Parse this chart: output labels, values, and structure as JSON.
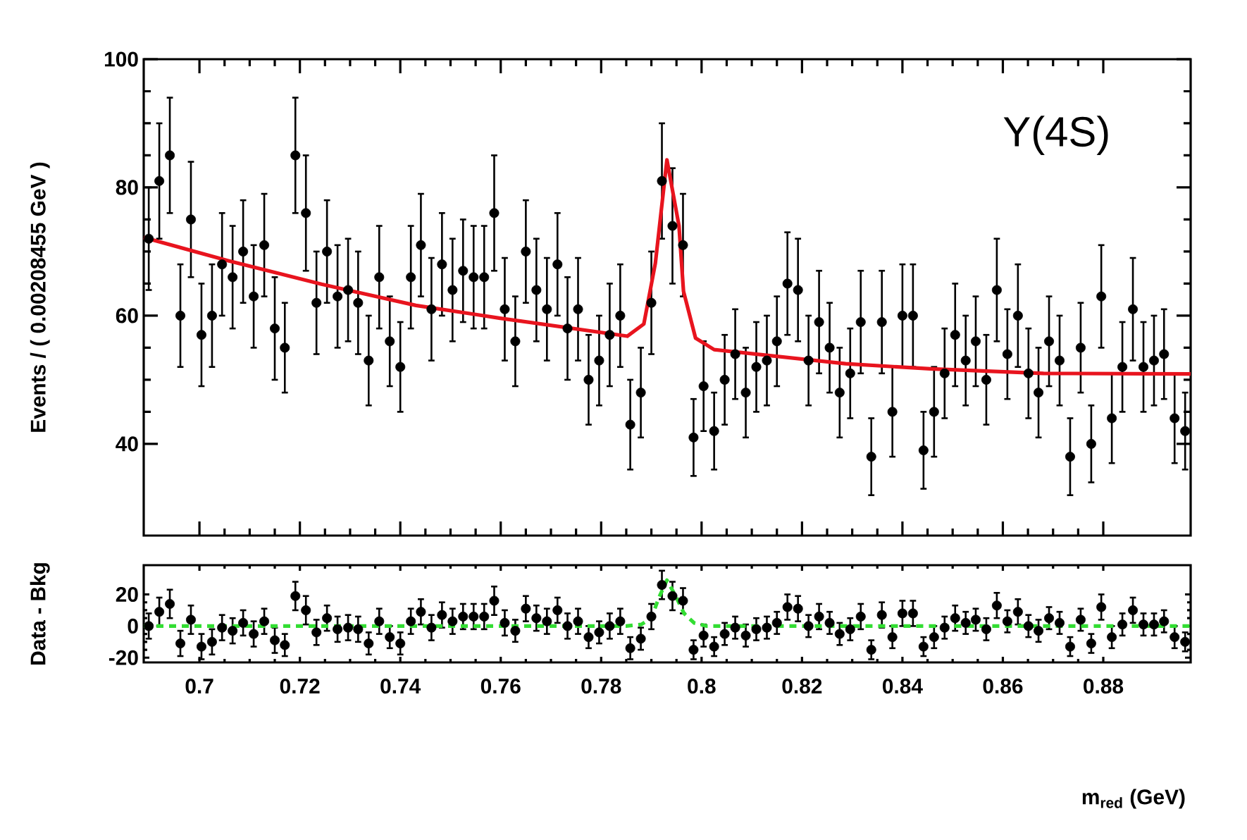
{
  "chart_data": [
    {
      "type": "scatter",
      "ylabel": "Events / ( 0.00208455 GeV )",
      "xlim": [
        0.6889,
        0.8974
      ],
      "ylim": [
        25.7,
        100
      ],
      "xticks": [
        0.7,
        0.72,
        0.74,
        0.76,
        0.78,
        0.8,
        0.82,
        0.84,
        0.86,
        0.88
      ],
      "yticks": [
        40,
        60,
        80,
        100
      ],
      "tick_labels": "y",
      "annotations": [
        "Υ(4S)"
      ],
      "x": [
        0.6899,
        0.692,
        0.6941,
        0.6962,
        0.6983,
        0.7004,
        0.7025,
        0.7045,
        0.7066,
        0.7087,
        0.7108,
        0.7129,
        0.715,
        0.717,
        0.7191,
        0.7212,
        0.7233,
        0.7254,
        0.7275,
        0.7296,
        0.7316,
        0.7337,
        0.7358,
        0.7379,
        0.74,
        0.7421,
        0.7441,
        0.7462,
        0.7483,
        0.7504,
        0.7525,
        0.7546,
        0.7567,
        0.7587,
        0.7608,
        0.7629,
        0.765,
        0.7671,
        0.7692,
        0.7713,
        0.7733,
        0.7754,
        0.7775,
        0.7796,
        0.7817,
        0.7838,
        0.7858,
        0.7879,
        0.79,
        0.7921,
        0.7942,
        0.7963,
        0.7984,
        0.8004,
        0.8025,
        0.8046,
        0.8067,
        0.8088,
        0.8109,
        0.813,
        0.815,
        0.8171,
        0.8192,
        0.8213,
        0.8234,
        0.8255,
        0.8275,
        0.8296,
        0.8317,
        0.8338,
        0.8359,
        0.838,
        0.84,
        0.8421,
        0.8442,
        0.8463,
        0.8484,
        0.8505,
        0.8526,
        0.8546,
        0.8567,
        0.8588,
        0.8609,
        0.863,
        0.8651,
        0.8671,
        0.8692,
        0.8713,
        0.8734,
        0.8755,
        0.8776,
        0.8796,
        0.8817,
        0.8838,
        0.8859,
        0.888,
        0.8901,
        0.8921,
        0.8942,
        0.8963
      ],
      "series": [
        {
          "color": "#000000",
          "marker": "circle",
          "values": [
            72,
            81,
            85,
            60,
            75,
            57,
            60,
            68,
            66,
            70,
            63,
            71,
            58,
            55,
            85,
            76,
            62,
            70,
            63,
            64,
            62,
            53,
            66,
            56,
            52,
            66,
            71,
            61,
            68,
            64,
            67,
            66,
            66,
            76,
            61,
            56,
            70,
            64,
            61,
            68,
            58,
            61,
            50,
            53,
            57,
            60,
            43,
            48,
            62,
            81,
            74,
            71,
            41,
            49,
            42,
            50,
            54,
            48,
            52,
            53,
            56,
            65,
            64,
            53,
            59,
            55,
            48,
            51,
            59,
            38,
            59,
            45,
            60,
            60,
            39,
            45,
            51,
            57,
            53,
            56,
            50,
            64,
            54,
            60,
            51,
            48,
            56,
            53,
            38,
            55,
            40,
            63,
            44,
            52,
            61,
            52,
            53,
            54,
            44,
            42
          ],
          "errors": [
            8,
            9,
            9,
            8,
            9,
            8,
            8,
            8,
            8,
            8,
            8,
            8,
            8,
            7,
            9,
            9,
            8,
            8,
            8,
            8,
            8,
            7,
            8,
            7,
            7,
            8,
            8,
            8,
            8,
            8,
            8,
            8,
            8,
            9,
            8,
            7,
            8,
            8,
            8,
            8,
            8,
            8,
            7,
            7,
            8,
            8,
            7,
            7,
            8,
            9,
            9,
            8,
            6,
            7,
            6,
            7,
            7,
            7,
            7,
            7,
            7,
            8,
            8,
            7,
            8,
            7,
            7,
            7,
            8,
            6,
            8,
            7,
            8,
            8,
            6,
            7,
            7,
            8,
            7,
            7,
            7,
            8,
            7,
            8,
            7,
            7,
            7,
            7,
            6,
            7,
            6,
            8,
            7,
            7,
            8,
            7,
            7,
            7,
            7,
            6
          ]
        },
        {
          "type": "line",
          "color": "#e8141e",
          "marker": "none",
          "line_style": "solid",
          "x": [
            0.6889,
            0.7056,
            0.7243,
            0.7431,
            0.7557,
            0.7599,
            0.7852,
            0.7885,
            0.7908,
            0.7931,
            0.7955,
            0.7964,
            0.7988,
            0.8025,
            0.8287,
            0.8456,
            0.8681,
            0.8974
          ],
          "values": [
            72.2,
            68.6,
            64.9,
            61.6,
            60.1,
            59.6,
            56.8,
            58.7,
            68.2,
            84.3,
            74,
            63.8,
            56.5,
            54.7,
            52.5,
            51.7,
            51,
            50.9
          ]
        }
      ]
    },
    {
      "type": "scatter",
      "ylabel": "Data - Bkg",
      "xlabel": "m$_{red}$ (GeV)",
      "xlim": [
        0.6889,
        0.8974
      ],
      "ylim": [
        -23,
        38.5
      ],
      "xticks": [
        0.7,
        0.72,
        0.74,
        0.76,
        0.78,
        0.8,
        0.82,
        0.84,
        0.86,
        0.88
      ],
      "yticks": [
        -20,
        0,
        20
      ],
      "x": [
        0.6899,
        0.692,
        0.6941,
        0.6962,
        0.6983,
        0.7004,
        0.7025,
        0.7045,
        0.7066,
        0.7087,
        0.7108,
        0.7129,
        0.715,
        0.717,
        0.7191,
        0.7212,
        0.7233,
        0.7254,
        0.7275,
        0.7296,
        0.7316,
        0.7337,
        0.7358,
        0.7379,
        0.74,
        0.7421,
        0.7441,
        0.7462,
        0.7483,
        0.7504,
        0.7525,
        0.7546,
        0.7567,
        0.7587,
        0.7608,
        0.7629,
        0.765,
        0.7671,
        0.7692,
        0.7713,
        0.7733,
        0.7754,
        0.7775,
        0.7796,
        0.7817,
        0.7838,
        0.7858,
        0.7879,
        0.79,
        0.7921,
        0.7942,
        0.7963,
        0.7984,
        0.8004,
        0.8025,
        0.8046,
        0.8067,
        0.8088,
        0.8109,
        0.813,
        0.815,
        0.8171,
        0.8192,
        0.8213,
        0.8234,
        0.8255,
        0.8275,
        0.8296,
        0.8317,
        0.8338,
        0.8359,
        0.838,
        0.84,
        0.8421,
        0.8442,
        0.8463,
        0.8484,
        0.8505,
        0.8526,
        0.8546,
        0.8567,
        0.8588,
        0.8609,
        0.863,
        0.8651,
        0.8671,
        0.8692,
        0.8713,
        0.8734,
        0.8755,
        0.8776,
        0.8796,
        0.8817,
        0.8838,
        0.8859,
        0.888,
        0.8901,
        0.8921,
        0.8942,
        0.8963
      ],
      "series": [
        {
          "color": "#000000",
          "marker": "circle",
          "values": [
            0,
            9,
            14,
            -11,
            4,
            -13,
            -10,
            -1,
            -3,
            2,
            -5,
            3,
            -9,
            -12,
            19,
            10,
            -4,
            5,
            -2,
            -1,
            -2,
            -11,
            3,
            -7,
            -11,
            3,
            9,
            -1,
            7,
            3,
            6,
            6,
            6,
            16,
            2,
            -3,
            11,
            5,
            3,
            10,
            0,
            3,
            -7,
            -4,
            0,
            3,
            -14,
            -8,
            6,
            26,
            19,
            16,
            -15,
            -6,
            -13,
            -5,
            -1,
            -6,
            -2,
            -1,
            2,
            12,
            11,
            0,
            6,
            2,
            -5,
            -2,
            6,
            -15,
            7,
            -7,
            8,
            8,
            -13,
            -7,
            -1,
            5,
            2,
            4,
            -2,
            13,
            3,
            9,
            0,
            -3,
            5,
            2,
            -13,
            4,
            -11,
            12,
            -7,
            1,
            10,
            1,
            1,
            3,
            -7,
            -10
          ],
          "errors": [
            8,
            9,
            9,
            8,
            9,
            8,
            8,
            8,
            8,
            8,
            8,
            8,
            8,
            7,
            9,
            9,
            8,
            8,
            8,
            8,
            8,
            7,
            8,
            7,
            7,
            8,
            8,
            8,
            8,
            8,
            8,
            8,
            8,
            9,
            8,
            7,
            8,
            8,
            8,
            8,
            8,
            8,
            7,
            7,
            8,
            8,
            7,
            7,
            8,
            9,
            9,
            8,
            6,
            7,
            6,
            7,
            7,
            7,
            7,
            7,
            7,
            8,
            8,
            7,
            8,
            7,
            7,
            7,
            8,
            6,
            8,
            7,
            8,
            8,
            6,
            7,
            7,
            8,
            7,
            7,
            7,
            8,
            7,
            8,
            7,
            7,
            7,
            7,
            6,
            7,
            6,
            8,
            7,
            7,
            8,
            7,
            7,
            7,
            7,
            6
          ]
        },
        {
          "type": "line",
          "color": "#33dd33",
          "marker": "none",
          "line_style": "dashed",
          "x": [
            0.6889,
            0.785,
            0.788,
            0.79,
            0.7915,
            0.7931,
            0.795,
            0.7965,
            0.7985,
            0.801,
            0.8974
          ],
          "values": [
            0,
            0,
            1,
            5,
            18,
            29,
            18,
            8,
            2,
            0,
            0
          ]
        }
      ]
    }
  ]
}
